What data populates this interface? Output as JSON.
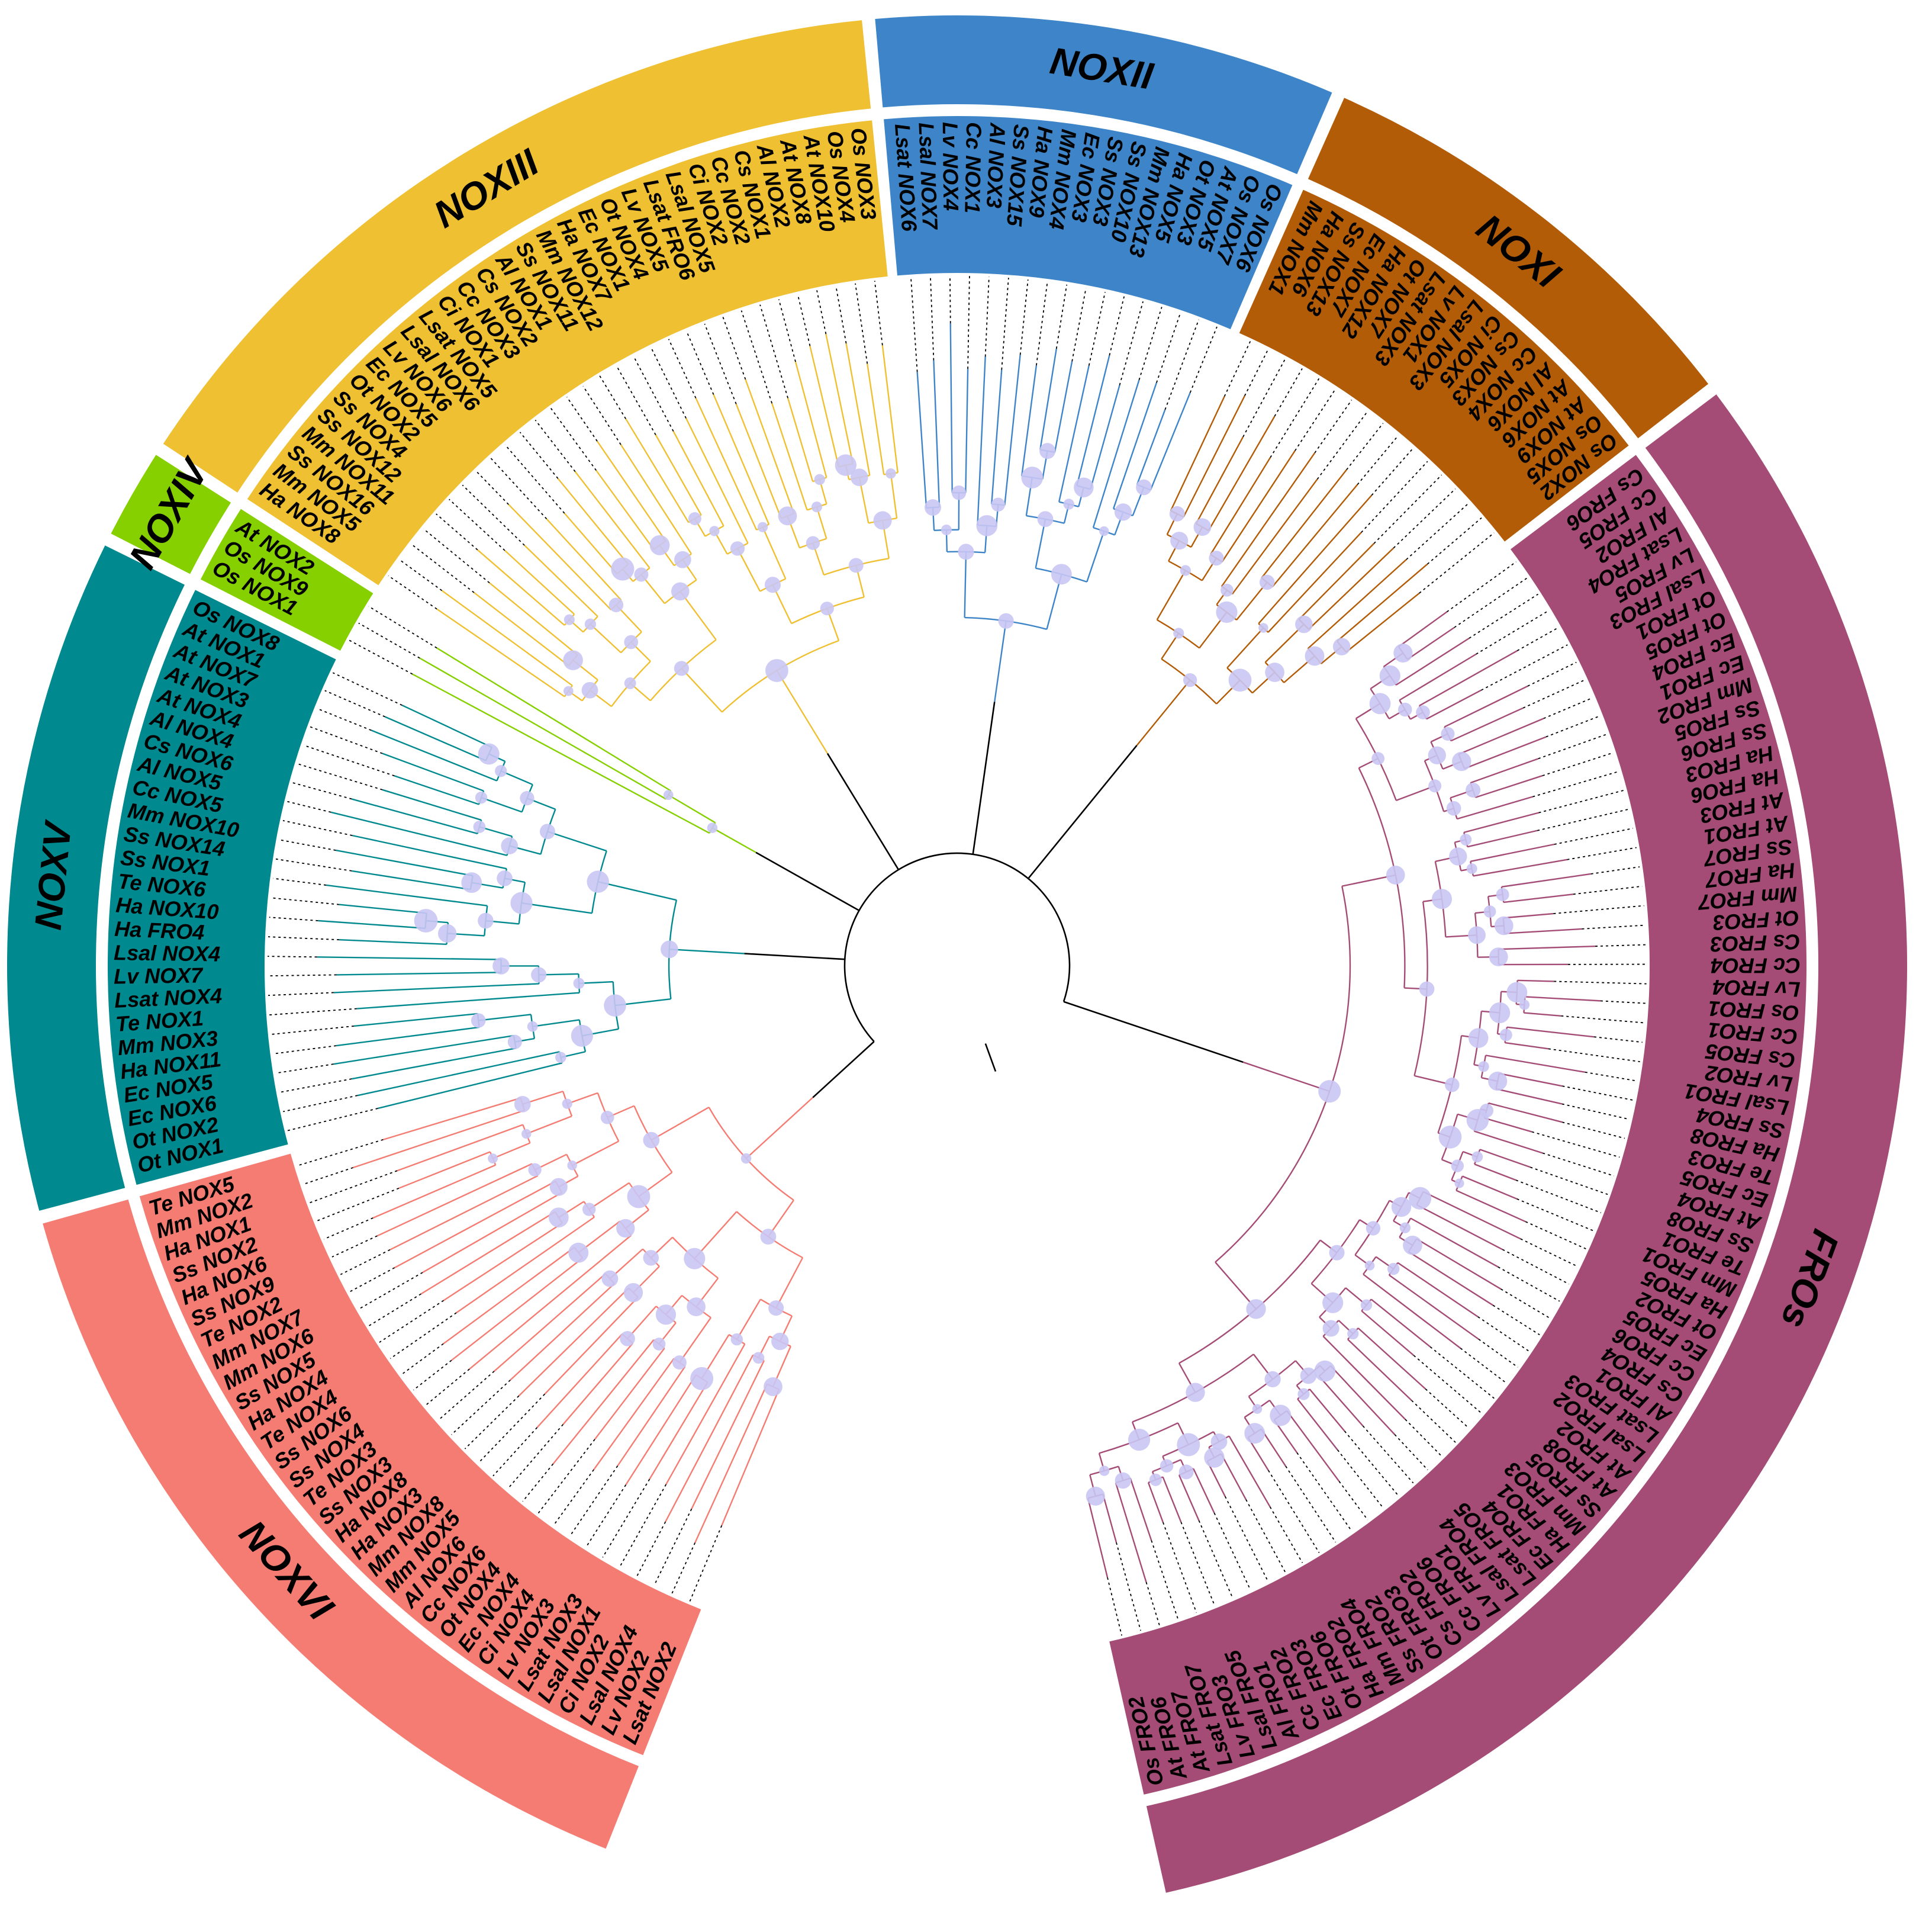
{
  "figure": {
    "type": "circular-phylogenetic-tree",
    "bootstrap_marker_color": "#c9c6f4",
    "outer_rings": [
      {
        "label": "NOXVI",
        "color": "#f47c72",
        "taxa": [
          "Lsat NOX2",
          "Lv NOX2",
          "Lsal NOX4",
          "Ci NOX2",
          "Lsal NOX1",
          "Lsat NOX3",
          "Lv NOX3",
          "Ci NOX4",
          "Ec NOX4",
          "Ot NOX4",
          "Cc NOX6",
          "Al NOX6",
          "Mm NOX5",
          "Mm NOX8",
          "Ha NOX3",
          "Ha NOX8",
          "Ss NOX3",
          "Te NOX3",
          "Ss NOX4",
          "Ss NOX6",
          "Te NOX4",
          "Ha NOX4",
          "Ss NOX5",
          "Mm NOX6",
          "Mm NOX7",
          "Te NOX2",
          "Ss NOX9",
          "Ha NOX6",
          "Ss NOX2",
          "Ha NOX1",
          "Mm NOX2",
          "Te NOX5"
        ]
      },
      {
        "label": "NOXV",
        "color": "#008a8f",
        "taxa": [
          "Ot NOX1",
          "Ot NOX2",
          "Ec NOX6",
          "Ec NOX5",
          "Ha NOX11",
          "Mm NOX3",
          "Te NOX1",
          "Lsat NOX4",
          "Lv NOX7",
          "Lsal NOX4",
          "Ha FRO4",
          "Ha NOX10",
          "Te NOX6",
          "Ss NOX1",
          "Ss NOX14",
          "Mm NOX10",
          "Cc NOX5",
          "Al NOX5",
          "Cs NOX6",
          "Al NOX4",
          "At NOX4",
          "At NOX3",
          "At NOX7",
          "At NOX1",
          "Os NOX8"
        ]
      },
      {
        "label": "NOXIV",
        "color": "#86d000",
        "taxa": [
          "Os NOX1",
          "Os NOX9",
          "At NOX2"
        ]
      },
      {
        "label": "NOXIII",
        "color": "#efc032",
        "taxa": [
          "Ha NOX8",
          "Mm NOX5",
          "Ss NOX16",
          "Mm NOX11",
          "Ss NOX12",
          "Ss NOX4",
          "Ot NOX2",
          "Ec NOX5",
          "Lv NOX6",
          "Lsal NOX6",
          "Lsat NOX5",
          "Ci NOX1",
          "Cc NOX3",
          "Cs NOX2",
          "Al NOX1",
          "Ss NOX11",
          "Mm NOX12",
          "Ha NOX7",
          "Ec NOX1",
          "Ot NOX4",
          "Lv NOX5",
          "Lsat FRO6",
          "Lsal NOX5",
          "Ci NOX2",
          "Cc NOX2",
          "Cs NOX1",
          "Al NOX2",
          "At NOX8",
          "At NOX10",
          "Os NOX4",
          "Os NOX3"
        ]
      },
      {
        "label": "NOXII",
        "color": "#3d85c8",
        "taxa": [
          "Lsat NOX6",
          "Lsal NOX7",
          "Lv NOX4",
          "Cc NOX1",
          "Al NOX3",
          "Ss NOX15",
          "Ha NOX9",
          "Mm NOX4",
          "Ec NOX3",
          "Ss NOX3",
          "Ss NOX10",
          "Mm NOX13",
          "Ha NOX5",
          "Ot NOX3",
          "At NOX5",
          "Os NOX7",
          "Os NOX6"
        ]
      },
      {
        "label": "NOXI",
        "color": "#b35c07",
        "taxa": [
          "Mm NOX1",
          "Ha NOX6",
          "Ss NOX13",
          "Ec NOX7",
          "Ha NOX12",
          "Ot NOX7",
          "Lsat NOX3",
          "Lv NOX1",
          "Lsal NOX3",
          "Ci NOX5",
          "Cs NOX3",
          "Cc NOX4",
          "Al NOX6",
          "At NOX6",
          "At NOX9",
          "Os NOX5",
          "Os NOX2"
        ]
      },
      {
        "label": "FROs",
        "color": "#a44c76",
        "taxa": [
          "Cs FRO6",
          "Cc FRO5",
          "Al FRO2",
          "Lsat FRO4",
          "Lv FRO5",
          "Lsal FRO3",
          "Ot FRO1",
          "Ot FRO5",
          "Ec FRO4",
          "Ec FRO1",
          "Mm FRO2",
          "Ss FRO5",
          "Ss FRO6",
          "Ha FRO3",
          "Ha FRO6",
          "At FRO3",
          "At FRO1",
          "Ss FRO7",
          "Ha FRO7",
          "Mm FRO7",
          "Ot FRO3",
          "Cs FRO3",
          "Cc FRO4",
          "Lv FRO4",
          "Os FRO1",
          "Cc FRO1",
          "Cs FRO5",
          "Lv FRO2",
          "Lsal FRO1",
          "Ss FRO4",
          "Ha FRO8",
          "Te FRO3",
          "Ec FRO5",
          "At FRO4",
          "Ss FRO8",
          "Te FRO1",
          "Mm FRO1",
          "Ha FRO5",
          "Ot FRO2",
          "Ec FRO5",
          "Cc FRO6",
          "Cs FRO4",
          "Al FRO1",
          "Lsat FRO3",
          "Lsal FRO2",
          "At FRO2",
          "At FRO8",
          "Ss FRO5",
          "Mm FRO3",
          "Ha FRO1",
          "Ec FRO4",
          "Lsat FRO5",
          "Lsal FRO4",
          "Lv FRO1",
          "Cc FRO6",
          "Cs FRO2",
          "Ot FRO3",
          "Ss FRO2",
          "Mm FRO4",
          "Ha FRO2",
          "Ot FRO6",
          "Ec FRO3",
          "Cc FRO2",
          "Al FRO1",
          "Lsal FRO5",
          "Lv FRO3",
          "Lsat FRO7",
          "At FRO7",
          "At FRO6",
          "Os FRO2"
        ]
      }
    ]
  }
}
